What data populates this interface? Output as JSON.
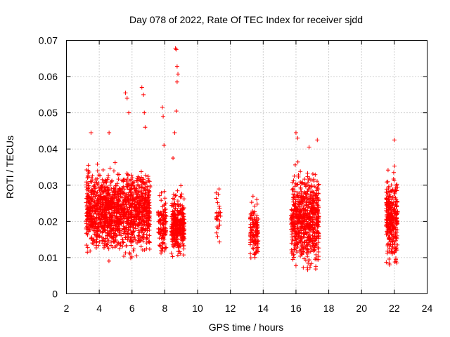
{
  "chart_data": {
    "type": "scatter",
    "title": "Day 078 of 2022, Rate Of TEC Index for receiver sjdd",
    "xlabel": "GPS time / hours",
    "ylabel": "ROTI / TECUs",
    "xlim": [
      2,
      24
    ],
    "ylim": [
      0,
      0.07
    ],
    "xticks": [
      2,
      4,
      6,
      8,
      10,
      12,
      14,
      16,
      18,
      20,
      22,
      24
    ],
    "xtick_labels": [
      "2",
      "4",
      "6",
      "8",
      "10",
      "12",
      "14",
      "16",
      "18",
      "20",
      "22",
      "24"
    ],
    "yticks": [
      0,
      0.01,
      0.02,
      0.03,
      0.04,
      0.05,
      0.06,
      0.07
    ],
    "ytick_labels": [
      "0",
      "0.01",
      "0.02",
      "0.03",
      "0.04",
      "0.05",
      "0.06",
      "0.07"
    ],
    "grid": true,
    "marker": "+",
    "marker_color": "#ff0000",
    "clusters": [
      {
        "x_start": 3.2,
        "x_end": 7.1,
        "y_low": 0.007,
        "y_high": 0.039,
        "y_center": 0.023,
        "n": 1400
      },
      {
        "x_start": 7.6,
        "x_end": 8.1,
        "y_low": 0.011,
        "y_high": 0.035,
        "y_center": 0.019,
        "n": 120
      },
      {
        "x_start": 8.4,
        "x_end": 9.2,
        "y_low": 0.008,
        "y_high": 0.033,
        "y_center": 0.019,
        "n": 320
      },
      {
        "x_start": 11.1,
        "x_end": 11.4,
        "y_low": 0.011,
        "y_high": 0.034,
        "y_center": 0.022,
        "n": 30
      },
      {
        "x_start": 13.2,
        "x_end": 13.7,
        "y_low": 0.006,
        "y_high": 0.028,
        "y_center": 0.017,
        "n": 130
      },
      {
        "x_start": 15.7,
        "x_end": 17.4,
        "y_low": 0.006,
        "y_high": 0.044,
        "y_center": 0.021,
        "n": 650
      },
      {
        "x_start": 21.5,
        "x_end": 22.2,
        "y_low": 0.008,
        "y_high": 0.042,
        "y_center": 0.021,
        "n": 300
      }
    ],
    "outliers": [
      {
        "x": 3.5,
        "y": 0.0445
      },
      {
        "x": 4.6,
        "y": 0.0445
      },
      {
        "x": 5.6,
        "y": 0.0555
      },
      {
        "x": 5.7,
        "y": 0.054
      },
      {
        "x": 5.8,
        "y": 0.05
      },
      {
        "x": 6.6,
        "y": 0.057
      },
      {
        "x": 6.7,
        "y": 0.055
      },
      {
        "x": 6.75,
        "y": 0.05
      },
      {
        "x": 6.8,
        "y": 0.046
      },
      {
        "x": 7.85,
        "y": 0.0515
      },
      {
        "x": 7.9,
        "y": 0.049
      },
      {
        "x": 7.95,
        "y": 0.041
      },
      {
        "x": 8.65,
        "y": 0.0678
      },
      {
        "x": 8.7,
        "y": 0.0675
      },
      {
        "x": 8.75,
        "y": 0.0628
      },
      {
        "x": 8.8,
        "y": 0.0607
      },
      {
        "x": 8.75,
        "y": 0.0585
      },
      {
        "x": 8.7,
        "y": 0.0505
      },
      {
        "x": 8.6,
        "y": 0.0445
      },
      {
        "x": 8.5,
        "y": 0.0375
      },
      {
        "x": 16.0,
        "y": 0.0445
      },
      {
        "x": 16.1,
        "y": 0.043
      },
      {
        "x": 16.8,
        "y": 0.0405
      },
      {
        "x": 17.3,
        "y": 0.0425
      },
      {
        "x": 22.0,
        "y": 0.0425
      },
      {
        "x": 22.1,
        "y": 0.009
      },
      {
        "x": 22.15,
        "y": 0.0085
      }
    ]
  }
}
